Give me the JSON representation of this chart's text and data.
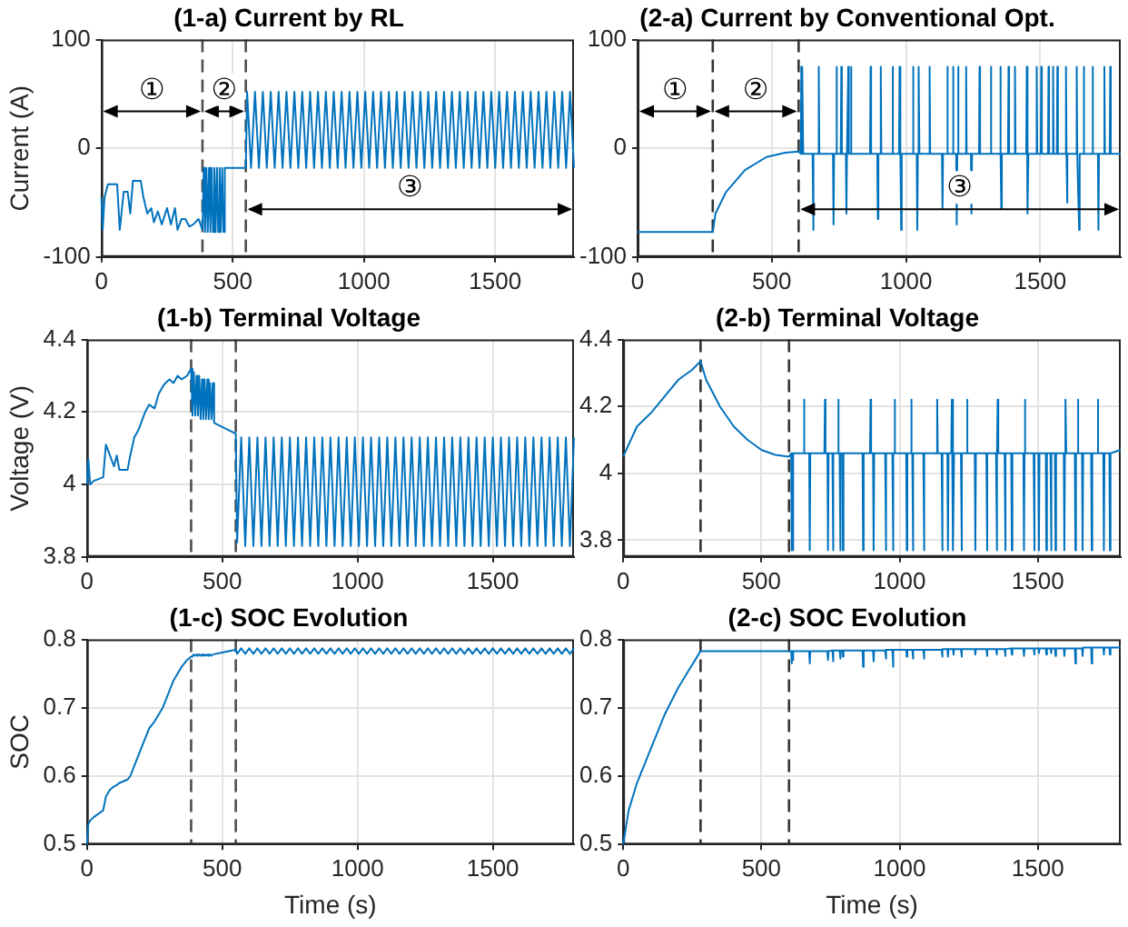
{
  "chart_data": [
    {
      "type": "line",
      "title": "(1-a) Current by RL",
      "ylabel": "Current (A)",
      "color": "#0072bd",
      "x": [
        0,
        5,
        12,
        25,
        60,
        70,
        85,
        100,
        110,
        120,
        150,
        160,
        175,
        190,
        200,
        215,
        230,
        250,
        265,
        280,
        290,
        305,
        320,
        335,
        350,
        370,
        385,
        390,
        395,
        400,
        405,
        410,
        415,
        420,
        425,
        430,
        435,
        440,
        445,
        450,
        455,
        460,
        465,
        470,
        550,
        555,
        570,
        585,
        600,
        615,
        630,
        645,
        660,
        675,
        690,
        705,
        720,
        735,
        750,
        765,
        780,
        795,
        810,
        825,
        840,
        855,
        870,
        885,
        900,
        915,
        930,
        945,
        960,
        975,
        990,
        1005,
        1020,
        1035,
        1050,
        1065,
        1080,
        1095,
        1110,
        1125,
        1140,
        1155,
        1170,
        1185,
        1200,
        1215,
        1230,
        1245,
        1260,
        1275,
        1290,
        1305,
        1320,
        1335,
        1350,
        1365,
        1380,
        1395,
        1410,
        1425,
        1440,
        1455,
        1470,
        1485,
        1500,
        1515,
        1530,
        1545,
        1560,
        1575,
        1590,
        1605,
        1620,
        1635,
        1650,
        1665,
        1680,
        1695,
        1710,
        1725,
        1740,
        1755,
        1770,
        1785,
        1800
      ],
      "values": [
        -45,
        -75,
        -45,
        -33,
        -33,
        -75,
        -40,
        -40,
        -60,
        -30,
        -30,
        -45,
        -60,
        -55,
        -68,
        -58,
        -70,
        -55,
        -70,
        -55,
        -75,
        -65,
        -65,
        -72,
        -70,
        -65,
        -75,
        -18,
        -77,
        -18,
        -77,
        -18,
        -77,
        -18,
        -77,
        -18,
        -77,
        -18,
        -77,
        -18,
        -77,
        -18,
        -77,
        -18,
        -18,
        52,
        -18,
        52,
        -18,
        52,
        -18,
        52,
        -18,
        52,
        -18,
        52,
        -18,
        52,
        -18,
        52,
        -18,
        52,
        -18,
        52,
        -18,
        52,
        -18,
        52,
        -18,
        52,
        -18,
        52,
        -18,
        52,
        -18,
        52,
        -18,
        52,
        -18,
        52,
        -18,
        52,
        -18,
        52,
        -18,
        52,
        -18,
        52,
        -18,
        52,
        -18,
        52,
        -18,
        52,
        -18,
        52,
        -18,
        52,
        -18,
        52,
        -18,
        52,
        -18,
        52,
        -18,
        52,
        -18,
        52,
        -18,
        52,
        -18,
        52,
        -18,
        52,
        -18,
        52,
        -18,
        52,
        -18,
        52,
        -18,
        52,
        -18,
        52,
        -18,
        52,
        -18,
        52,
        -18
      ],
      "xlim": [
        0,
        1800
      ],
      "xticks": [
        0,
        500,
        1000,
        1500
      ],
      "ylim": [
        -100,
        100
      ],
      "yticks": [
        -100,
        0,
        100
      ],
      "grid": true,
      "ref_lines": [
        {
          "axis": "x",
          "value": 385,
          "color": "#4d4d4d",
          "line_style": "dashed"
        },
        {
          "axis": "x",
          "value": 550,
          "color": "#4d4d4d",
          "line_style": "dashed"
        }
      ],
      "annotations": [
        "①",
        "②",
        "③"
      ]
    },
    {
      "type": "line",
      "title": "(2-a) Current by Conventional Opt.",
      "color": "#0072bd",
      "x": [
        0,
        280,
        290,
        330,
        400,
        480,
        550,
        600,
        608,
        610,
        612,
        613,
        615,
        617,
        652,
        654,
        656,
        673,
        675,
        677,
        728,
        730,
        732,
        739,
        741,
        743,
        757,
        759,
        761,
        776,
        778,
        780,
        783,
        785,
        787,
        793,
        795,
        797,
        866,
        868,
        870,
        893,
        895,
        897,
        904,
        906,
        908,
        948,
        950,
        952,
        974,
        976,
        978,
        980,
        982,
        984,
        1024,
        1026,
        1028,
        1040,
        1042,
        1044,
        1046,
        1048,
        1050,
        1086,
        1088,
        1090,
        1134,
        1136,
        1138,
        1152,
        1154,
        1156,
        1173,
        1175,
        1177,
        1187,
        1189,
        1191,
        1193,
        1195,
        1197,
        1222,
        1224,
        1226,
        1242,
        1244,
        1246,
        1272,
        1274,
        1276,
        1314,
        1316,
        1318,
        1349,
        1351,
        1353,
        1353,
        1355,
        1357,
        1380,
        1382,
        1384,
        1404,
        1406,
        1408,
        1448,
        1450,
        1452,
        1452,
        1454,
        1456,
        1485,
        1487,
        1489,
        1502,
        1504,
        1506,
        1529,
        1531,
        1533,
        1546,
        1548,
        1550,
        1562,
        1564,
        1566,
        1594,
        1596,
        1598,
        1599,
        1601,
        1603,
        1634,
        1636,
        1638,
        1643,
        1645,
        1647,
        1660,
        1662,
        1664,
        1693,
        1695,
        1697,
        1715,
        1717,
        1719,
        1737,
        1739,
        1741,
        1759,
        1761,
        1763,
        1800
      ],
      "values": [
        -77,
        -77,
        -60,
        -40,
        -20,
        -8,
        -4,
        -3,
        -5,
        75,
        -5,
        -5,
        75,
        -5,
        -5,
        -75,
        -5,
        -5,
        75,
        -5,
        -5,
        -70,
        -5,
        -5,
        75,
        -5,
        -5,
        75,
        -5,
        -5,
        -60,
        -5,
        -5,
        75,
        -5,
        -5,
        75,
        -5,
        -5,
        75,
        -5,
        -5,
        -65,
        -5,
        -5,
        75,
        -5,
        -5,
        75,
        -5,
        -5,
        75,
        -5,
        -5,
        -75,
        -5,
        -5,
        75,
        -5,
        -5,
        -75,
        -5,
        -5,
        75,
        -5,
        -5,
        75,
        -5,
        -5,
        -55,
        -5,
        -5,
        75,
        -5,
        -5,
        75,
        -5,
        -5,
        -70,
        -5,
        -5,
        75,
        -5,
        -5,
        75,
        -5,
        -5,
        -60,
        -5,
        -5,
        75,
        -5,
        -5,
        75,
        -5,
        -5,
        75,
        -5,
        -5,
        -55,
        -5,
        -5,
        75,
        -5,
        -5,
        75,
        -5,
        -5,
        75,
        -5,
        -5,
        -60,
        -5,
        -5,
        75,
        -5,
        -5,
        75,
        -5,
        -5,
        75,
        -5,
        -5,
        75,
        -5,
        -5,
        75,
        -5,
        -5,
        75,
        -5,
        -5,
        -50,
        -5,
        -5,
        75,
        -5,
        -5,
        -75,
        -5,
        -5,
        75,
        -5,
        -5,
        75,
        -5,
        -5,
        -75,
        -5,
        -5,
        75,
        -5,
        -5,
        75,
        -5,
        -5
      ],
      "xlim": [
        0,
        1800
      ],
      "xticks": [
        0,
        500,
        1000,
        1500
      ],
      "ylim": [
        -100,
        100
      ],
      "yticks": [
        -100,
        0,
        100
      ],
      "grid": true,
      "ref_lines": [
        {
          "axis": "x",
          "value": 280,
          "color": "#333333",
          "line_style": "dashed"
        },
        {
          "axis": "x",
          "value": 600,
          "color": "#333333",
          "line_style": "dashed"
        }
      ],
      "annotations": [
        "①",
        "②",
        "③"
      ]
    },
    {
      "type": "line",
      "title": "(1-b) Terminal Voltage",
      "ylabel": "Voltage (V)",
      "color": "#0072bd",
      "x": [
        0,
        5,
        12,
        25,
        60,
        70,
        85,
        100,
        110,
        120,
        150,
        160,
        175,
        190,
        200,
        215,
        230,
        250,
        265,
        280,
        290,
        305,
        320,
        335,
        350,
        370,
        385,
        390,
        395,
        400,
        405,
        410,
        415,
        420,
        425,
        430,
        435,
        440,
        445,
        450,
        455,
        460,
        465,
        470,
        550,
        555,
        570,
        585,
        600,
        615,
        630,
        645,
        660,
        675,
        690,
        705,
        720,
        735,
        750,
        765,
        780,
        795,
        810,
        825,
        840,
        855,
        870,
        885,
        900,
        915,
        930,
        945,
        960,
        975,
        990,
        1005,
        1020,
        1035,
        1050,
        1065,
        1080,
        1095,
        1110,
        1125,
        1140,
        1155,
        1170,
        1185,
        1200,
        1215,
        1230,
        1245,
        1260,
        1275,
        1290,
        1305,
        1320,
        1335,
        1350,
        1365,
        1380,
        1395,
        1410,
        1425,
        1440,
        1455,
        1470,
        1485,
        1500,
        1515,
        1530,
        1545,
        1560,
        1575,
        1590,
        1605,
        1620,
        1635,
        1650,
        1665,
        1680,
        1695,
        1710,
        1725,
        1740,
        1755,
        1770,
        1785,
        1800
      ],
      "values": [
        4.0,
        4.07,
        4.0,
        4.01,
        4.02,
        4.11,
        4.08,
        4.05,
        4.08,
        4.04,
        4.04,
        4.08,
        4.13,
        4.15,
        4.17,
        4.2,
        4.22,
        4.21,
        4.25,
        4.27,
        4.28,
        4.29,
        4.28,
        4.3,
        4.29,
        4.3,
        4.32,
        4.19,
        4.31,
        4.19,
        4.3,
        4.19,
        4.3,
        4.18,
        4.29,
        4.18,
        4.29,
        4.18,
        4.29,
        4.18,
        4.28,
        4.18,
        4.28,
        4.17,
        4.14,
        3.84,
        4.13,
        3.83,
        4.13,
        3.83,
        4.13,
        3.83,
        4.13,
        3.83,
        4.13,
        3.83,
        4.13,
        3.83,
        4.13,
        3.83,
        4.13,
        3.83,
        4.13,
        3.83,
        4.13,
        3.83,
        4.13,
        3.83,
        4.13,
        3.83,
        4.13,
        3.83,
        4.13,
        3.83,
        4.13,
        3.83,
        4.13,
        3.83,
        4.13,
        3.83,
        4.13,
        3.83,
        4.13,
        3.83,
        4.13,
        3.83,
        4.13,
        3.83,
        4.13,
        3.83,
        4.13,
        3.83,
        4.13,
        3.83,
        4.13,
        3.83,
        4.13,
        3.83,
        4.13,
        3.83,
        4.13,
        3.83,
        4.13,
        3.83,
        4.13,
        3.83,
        4.13,
        3.83,
        4.13,
        3.83,
        4.13,
        3.83,
        4.13,
        3.83,
        4.13,
        3.83,
        4.13,
        3.83,
        4.13,
        3.83,
        4.13,
        3.83,
        4.13,
        3.83,
        4.13,
        3.83,
        4.13,
        3.83,
        4.13
      ],
      "xlim": [
        0,
        1800
      ],
      "xticks": [
        0,
        500,
        1000,
        1500
      ],
      "ylim": [
        3.8,
        4.4
      ],
      "yticks": [
        3.8,
        4,
        4.2,
        4.4
      ],
      "grid": true,
      "ref_lines": [
        {
          "axis": "x",
          "value": 385,
          "color": "#4d4d4d",
          "line_style": "dashed"
        },
        {
          "axis": "x",
          "value": 550,
          "color": "#4d4d4d",
          "line_style": "dashed"
        }
      ]
    },
    {
      "type": "line",
      "title": "(2-b) Terminal Voltage",
      "color": "#0072bd",
      "x": [
        0,
        50,
        100,
        150,
        200,
        250,
        280,
        300,
        350,
        400,
        450,
        500,
        550,
        600,
        608,
        610,
        612,
        613,
        615,
        617,
        652,
        654,
        656,
        673,
        675,
        677,
        728,
        730,
        732,
        739,
        741,
        743,
        757,
        759,
        761,
        776,
        778,
        780,
        783,
        785,
        787,
        793,
        795,
        797,
        866,
        868,
        870,
        893,
        895,
        897,
        904,
        906,
        908,
        948,
        950,
        952,
        974,
        976,
        978,
        980,
        982,
        984,
        1024,
        1026,
        1028,
        1040,
        1042,
        1044,
        1046,
        1048,
        1050,
        1086,
        1088,
        1090,
        1134,
        1136,
        1138,
        1152,
        1154,
        1156,
        1173,
        1175,
        1177,
        1187,
        1189,
        1191,
        1193,
        1195,
        1197,
        1222,
        1224,
        1226,
        1242,
        1244,
        1246,
        1272,
        1274,
        1276,
        1314,
        1316,
        1318,
        1349,
        1351,
        1353,
        1353,
        1355,
        1357,
        1380,
        1382,
        1384,
        1404,
        1406,
        1408,
        1448,
        1450,
        1452,
        1452,
        1454,
        1456,
        1485,
        1487,
        1489,
        1502,
        1504,
        1506,
        1529,
        1531,
        1533,
        1546,
        1548,
        1550,
        1562,
        1564,
        1566,
        1594,
        1596,
        1598,
        1599,
        1601,
        1603,
        1634,
        1636,
        1638,
        1643,
        1645,
        1647,
        1660,
        1662,
        1664,
        1693,
        1695,
        1697,
        1715,
        1717,
        1719,
        1737,
        1739,
        1741,
        1759,
        1761,
        1763,
        1800
      ],
      "values": [
        4.05,
        4.14,
        4.18,
        4.23,
        4.28,
        4.31,
        4.335,
        4.28,
        4.2,
        4.14,
        4.1,
        4.07,
        4.055,
        4.05,
        4.06,
        3.77,
        4.06,
        4.06,
        3.77,
        4.06,
        4.06,
        4.22,
        4.06,
        4.06,
        3.77,
        4.06,
        4.06,
        4.22,
        4.06,
        4.06,
        3.77,
        4.06,
        4.06,
        3.77,
        4.06,
        4.06,
        4.22,
        4.06,
        4.06,
        3.77,
        4.06,
        4.06,
        3.77,
        4.06,
        4.06,
        3.77,
        4.06,
        4.06,
        4.22,
        4.06,
        4.06,
        3.77,
        4.06,
        4.06,
        3.77,
        4.06,
        4.06,
        3.77,
        4.06,
        4.06,
        4.22,
        4.06,
        4.06,
        3.77,
        4.06,
        4.06,
        4.22,
        4.06,
        4.06,
        3.77,
        4.06,
        4.06,
        3.77,
        4.06,
        4.06,
        4.22,
        4.06,
        4.06,
        3.77,
        4.06,
        4.06,
        3.77,
        4.06,
        4.06,
        4.22,
        4.06,
        4.06,
        3.77,
        4.06,
        4.06,
        3.77,
        4.06,
        4.06,
        4.22,
        4.06,
        4.06,
        3.77,
        4.06,
        4.06,
        3.77,
        4.06,
        4.06,
        3.77,
        4.06,
        4.06,
        4.22,
        4.06,
        4.06,
        3.77,
        4.06,
        4.06,
        3.77,
        4.06,
        4.06,
        3.77,
        4.06,
        4.06,
        4.22,
        4.06,
        4.06,
        3.77,
        4.06,
        4.06,
        3.77,
        4.06,
        4.06,
        3.77,
        4.06,
        4.06,
        3.77,
        4.06,
        4.06,
        3.77,
        4.06,
        4.06,
        3.77,
        4.06,
        4.06,
        4.22,
        4.06,
        4.06,
        3.77,
        4.06,
        4.06,
        4.22,
        4.06,
        4.06,
        3.77,
        4.06,
        4.06,
        3.77,
        4.06,
        4.06,
        4.22,
        4.06,
        4.06,
        3.77,
        4.06,
        4.06,
        3.77,
        4.06,
        4.07
      ],
      "xlim": [
        0,
        1800
      ],
      "xticks": [
        0,
        500,
        1000,
        1500
      ],
      "ylim": [
        3.75,
        4.4
      ],
      "yticks": [
        3.8,
        4,
        4.2,
        4.4
      ],
      "grid": true,
      "ref_lines": [
        {
          "axis": "x",
          "value": 280,
          "color": "#333333",
          "line_style": "dashed"
        },
        {
          "axis": "x",
          "value": 600,
          "color": "#333333",
          "line_style": "dashed"
        }
      ]
    },
    {
      "type": "line",
      "title": "(1-c) SOC Evolution",
      "xlabel": "Time (s)",
      "ylabel": "SOC",
      "color": "#0072bd",
      "x": [
        0,
        5,
        12,
        25,
        60,
        70,
        85,
        100,
        110,
        120,
        150,
        160,
        175,
        190,
        200,
        215,
        230,
        250,
        265,
        280,
        290,
        305,
        320,
        335,
        350,
        370,
        385,
        390,
        395,
        400,
        405,
        410,
        415,
        420,
        425,
        430,
        435,
        440,
        445,
        450,
        455,
        460,
        465,
        470,
        550,
        555,
        570,
        585,
        600,
        615,
        630,
        645,
        660,
        675,
        690,
        705,
        720,
        735,
        750,
        765,
        780,
        795,
        810,
        825,
        840,
        855,
        870,
        885,
        900,
        915,
        930,
        945,
        960,
        975,
        990,
        1005,
        1020,
        1035,
        1050,
        1065,
        1080,
        1095,
        1110,
        1125,
        1140,
        1155,
        1170,
        1185,
        1200,
        1215,
        1230,
        1245,
        1260,
        1275,
        1290,
        1305,
        1320,
        1335,
        1350,
        1365,
        1380,
        1395,
        1410,
        1425,
        1440,
        1455,
        1470,
        1485,
        1500,
        1515,
        1530,
        1545,
        1560,
        1575,
        1590,
        1605,
        1620,
        1635,
        1650,
        1665,
        1680,
        1695,
        1710,
        1725,
        1740,
        1755,
        1770,
        1785,
        1800
      ],
      "values": [
        0.5,
        0.53,
        0.535,
        0.54,
        0.55,
        0.57,
        0.58,
        0.585,
        0.587,
        0.59,
        0.595,
        0.6,
        0.615,
        0.63,
        0.64,
        0.655,
        0.67,
        0.68,
        0.69,
        0.7,
        0.71,
        0.725,
        0.74,
        0.75,
        0.76,
        0.77,
        0.775,
        0.776,
        0.778,
        0.776,
        0.778,
        0.776,
        0.778,
        0.776,
        0.778,
        0.776,
        0.778,
        0.776,
        0.778,
        0.776,
        0.778,
        0.776,
        0.778,
        0.778,
        0.785,
        0.779,
        0.787,
        0.779,
        0.787,
        0.779,
        0.787,
        0.779,
        0.787,
        0.779,
        0.787,
        0.779,
        0.787,
        0.779,
        0.787,
        0.779,
        0.787,
        0.779,
        0.787,
        0.779,
        0.787,
        0.779,
        0.787,
        0.779,
        0.787,
        0.779,
        0.787,
        0.779,
        0.787,
        0.779,
        0.787,
        0.779,
        0.787,
        0.779,
        0.787,
        0.779,
        0.787,
        0.779,
        0.787,
        0.779,
        0.787,
        0.779,
        0.787,
        0.779,
        0.787,
        0.779,
        0.787,
        0.779,
        0.787,
        0.779,
        0.787,
        0.779,
        0.787,
        0.779,
        0.787,
        0.779,
        0.787,
        0.779,
        0.787,
        0.779,
        0.787,
        0.779,
        0.787,
        0.779,
        0.787,
        0.779,
        0.787,
        0.779,
        0.787,
        0.779,
        0.787,
        0.779,
        0.787,
        0.779,
        0.787,
        0.779,
        0.787,
        0.779,
        0.787,
        0.779,
        0.787,
        0.779,
        0.787,
        0.779,
        0.787
      ],
      "xlim": [
        0,
        1800
      ],
      "xticks": [
        0,
        500,
        1000,
        1500
      ],
      "ylim": [
        0.5,
        0.8
      ],
      "yticks": [
        0.5,
        0.6,
        0.7,
        0.8
      ],
      "grid": true,
      "ref_lines": [
        {
          "axis": "x",
          "value": 385,
          "color": "#4d4d4d",
          "line_style": "dashed"
        },
        {
          "axis": "x",
          "value": 550,
          "color": "#4d4d4d",
          "line_style": "dashed"
        }
      ]
    },
    {
      "type": "line",
      "title": "(2-c) SOC Evolution",
      "xlabel": "Time (s)",
      "color": "#0072bd",
      "x": [
        0,
        20,
        50,
        100,
        150,
        200,
        280,
        600,
        608,
        610,
        612,
        613,
        615,
        617,
        673,
        675,
        677,
        739,
        741,
        743,
        757,
        759,
        761,
        783,
        785,
        787,
        793,
        795,
        797,
        866,
        868,
        870,
        904,
        906,
        908,
        948,
        950,
        952,
        974,
        976,
        978,
        1024,
        1026,
        1028,
        1046,
        1048,
        1050,
        1086,
        1088,
        1090,
        1152,
        1154,
        1156,
        1173,
        1175,
        1177,
        1193,
        1195,
        1197,
        1222,
        1224,
        1226,
        1272,
        1274,
        1276,
        1314,
        1316,
        1318,
        1349,
        1351,
        1353,
        1380,
        1382,
        1384,
        1404,
        1406,
        1408,
        1448,
        1450,
        1452,
        1485,
        1487,
        1489,
        1502,
        1504,
        1506,
        1529,
        1531,
        1533,
        1546,
        1548,
        1550,
        1562,
        1564,
        1566,
        1594,
        1596,
        1598,
        1634,
        1636,
        1638,
        1660,
        1662,
        1664,
        1693,
        1695,
        1697,
        1737,
        1739,
        1741,
        1759,
        1761,
        1763,
        1800
      ],
      "values": [
        0.5,
        0.55,
        0.59,
        0.64,
        0.69,
        0.73,
        0.783,
        0.783,
        0.783,
        0.765,
        0.783,
        0.783,
        0.77,
        0.783,
        0.783,
        0.765,
        0.783,
        0.783,
        0.77,
        0.783,
        0.784,
        0.768,
        0.784,
        0.784,
        0.772,
        0.784,
        0.784,
        0.775,
        0.784,
        0.784,
        0.76,
        0.784,
        0.784,
        0.768,
        0.784,
        0.784,
        0.772,
        0.785,
        0.785,
        0.76,
        0.785,
        0.785,
        0.775,
        0.785,
        0.785,
        0.772,
        0.785,
        0.785,
        0.772,
        0.785,
        0.785,
        0.775,
        0.786,
        0.786,
        0.775,
        0.786,
        0.786,
        0.778,
        0.786,
        0.786,
        0.775,
        0.786,
        0.786,
        0.778,
        0.786,
        0.786,
        0.776,
        0.786,
        0.786,
        0.778,
        0.786,
        0.786,
        0.776,
        0.786,
        0.787,
        0.778,
        0.787,
        0.787,
        0.776,
        0.787,
        0.787,
        0.778,
        0.787,
        0.787,
        0.78,
        0.787,
        0.787,
        0.778,
        0.787,
        0.787,
        0.78,
        0.787,
        0.787,
        0.776,
        0.787,
        0.787,
        0.776,
        0.787,
        0.787,
        0.765,
        0.787,
        0.787,
        0.776,
        0.788,
        0.788,
        0.765,
        0.788,
        0.788,
        0.778,
        0.788,
        0.788,
        0.778,
        0.788,
        0.788
      ],
      "xlim": [
        0,
        1800
      ],
      "xticks": [
        0,
        500,
        1000,
        1500
      ],
      "ylim": [
        0.5,
        0.8
      ],
      "yticks": [
        0.5,
        0.6,
        0.7,
        0.8
      ],
      "grid": true,
      "ref_lines": [
        {
          "axis": "x",
          "value": 280,
          "color": "#333333",
          "line_style": "dashed"
        },
        {
          "axis": "x",
          "value": 600,
          "color": "#333333",
          "line_style": "dashed"
        }
      ]
    }
  ]
}
